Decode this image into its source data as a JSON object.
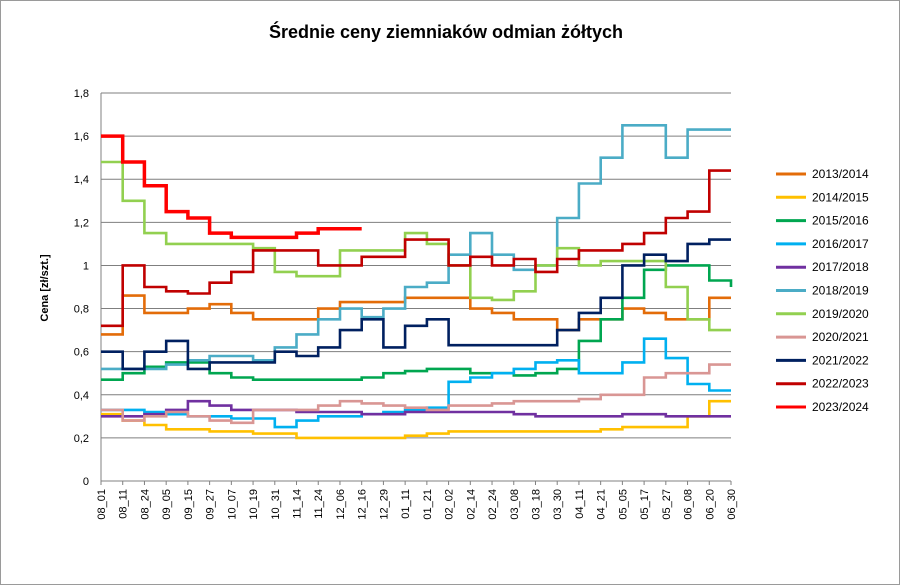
{
  "chart_data": {
    "type": "line",
    "title": "Średnie ceny ziemniaków odmian żółtych",
    "xlabel": "",
    "ylabel": "Cena [zł/szt.]",
    "ylim": [
      0,
      1.8
    ],
    "yticks": [
      0,
      0.2,
      0.4,
      0.6,
      0.8,
      1,
      1.2,
      1.4,
      1.6,
      1.8
    ],
    "ytick_labels": [
      "0",
      "0,2",
      "0,4",
      "0,6",
      "0,8",
      "1",
      "1,2",
      "1,4",
      "1,6",
      "1,8"
    ],
    "grid": "horizontal",
    "legend_position": "right",
    "categories": [
      "08_01",
      "08_11",
      "08_24",
      "09_05",
      "09_15",
      "09_27",
      "10_07",
      "10_19",
      "10_31",
      "11_14",
      "11_24",
      "12_06",
      "12_16",
      "12_29",
      "01_11",
      "01_21",
      "02_02",
      "02_14",
      "02_24",
      "03_08",
      "03_18",
      "03_30",
      "04_11",
      "04_21",
      "05_05",
      "05_17",
      "05_27",
      "06_08",
      "06_20",
      "06_30"
    ],
    "series": [
      {
        "name": "2013/2014",
        "color": "#e36c09",
        "values": [
          0.68,
          0.86,
          0.78,
          0.78,
          0.8,
          0.82,
          0.78,
          0.75,
          0.75,
          0.75,
          0.8,
          0.83,
          0.83,
          0.83,
          0.85,
          0.85,
          0.85,
          0.8,
          0.78,
          0.75,
          0.75,
          0.7,
          0.75,
          0.75,
          0.8,
          0.78,
          0.75,
          0.75,
          0.85,
          0.85
        ]
      },
      {
        "name": "2014/2015",
        "color": "#ffc000",
        "values": [
          0.31,
          0.28,
          0.26,
          0.24,
          0.24,
          0.23,
          0.23,
          0.22,
          0.22,
          0.2,
          0.2,
          0.2,
          0.2,
          0.2,
          0.21,
          0.22,
          0.23,
          0.23,
          0.23,
          0.23,
          0.23,
          0.23,
          0.23,
          0.24,
          0.25,
          0.25,
          0.25,
          0.3,
          0.37,
          0.37
        ]
      },
      {
        "name": "2015/2016",
        "color": "#00a650",
        "values": [
          0.47,
          0.5,
          0.53,
          0.55,
          0.55,
          0.5,
          0.48,
          0.47,
          0.47,
          0.47,
          0.47,
          0.47,
          0.48,
          0.5,
          0.51,
          0.52,
          0.52,
          0.5,
          0.5,
          0.49,
          0.5,
          0.52,
          0.65,
          0.75,
          0.85,
          0.98,
          1.0,
          1.0,
          0.93,
          0.9
        ]
      },
      {
        "name": "2016/2017",
        "color": "#00b0f0",
        "values": [
          0.33,
          0.33,
          0.32,
          0.31,
          0.3,
          0.3,
          0.29,
          0.29,
          0.25,
          0.28,
          0.3,
          0.3,
          0.31,
          0.32,
          0.33,
          0.34,
          0.46,
          0.48,
          0.5,
          0.52,
          0.55,
          0.56,
          0.5,
          0.5,
          0.55,
          0.66,
          0.57,
          0.45,
          0.42,
          0.42
        ]
      },
      {
        "name": "2017/2018",
        "color": "#7030a0",
        "values": [
          0.3,
          0.3,
          0.31,
          0.33,
          0.37,
          0.35,
          0.33,
          0.33,
          0.33,
          0.32,
          0.32,
          0.32,
          0.31,
          0.31,
          0.32,
          0.32,
          0.32,
          0.32,
          0.32,
          0.31,
          0.3,
          0.3,
          0.3,
          0.3,
          0.31,
          0.31,
          0.3,
          0.3,
          0.3,
          0.3
        ]
      },
      {
        "name": "2018/2019",
        "color": "#4bacc6",
        "values": [
          0.52,
          0.52,
          0.52,
          0.54,
          0.56,
          0.58,
          0.58,
          0.56,
          0.62,
          0.68,
          0.75,
          0.8,
          0.76,
          0.8,
          0.9,
          0.92,
          1.05,
          1.15,
          1.05,
          0.98,
          1.0,
          1.22,
          1.38,
          1.5,
          1.65,
          1.65,
          1.5,
          1.63,
          1.63,
          1.63
        ]
      },
      {
        "name": "2019/2020",
        "color": "#92d050",
        "values": [
          1.48,
          1.3,
          1.15,
          1.1,
          1.1,
          1.1,
          1.1,
          1.08,
          0.97,
          0.95,
          0.95,
          1.07,
          1.07,
          1.07,
          1.15,
          1.1,
          1.0,
          0.85,
          0.84,
          0.88,
          1.0,
          1.08,
          1.0,
          1.02,
          1.02,
          1.02,
          0.9,
          0.75,
          0.7,
          0.7
        ]
      },
      {
        "name": "2020/2021",
        "color": "#d99694",
        "values": [
          0.33,
          0.28,
          0.3,
          0.32,
          0.3,
          0.28,
          0.27,
          0.33,
          0.33,
          0.33,
          0.35,
          0.37,
          0.36,
          0.35,
          0.34,
          0.33,
          0.35,
          0.35,
          0.36,
          0.37,
          0.37,
          0.37,
          0.38,
          0.4,
          0.4,
          0.48,
          0.5,
          0.5,
          0.54,
          0.54
        ]
      },
      {
        "name": "2021/2022",
        "color": "#002060",
        "values": [
          0.6,
          0.52,
          0.6,
          0.65,
          0.52,
          0.55,
          0.55,
          0.55,
          0.6,
          0.58,
          0.62,
          0.7,
          0.75,
          0.62,
          0.72,
          0.75,
          0.63,
          0.63,
          0.63,
          0.63,
          0.63,
          0.7,
          0.78,
          0.85,
          1.0,
          1.05,
          1.02,
          1.1,
          1.12,
          1.12
        ]
      },
      {
        "name": "2022/2023",
        "color": "#c00000",
        "values": [
          0.72,
          1.0,
          0.9,
          0.88,
          0.87,
          0.92,
          0.97,
          1.07,
          1.07,
          1.07,
          1.0,
          1.0,
          1.04,
          1.04,
          1.12,
          1.12,
          1.0,
          1.04,
          1.0,
          1.03,
          0.97,
          1.03,
          1.07,
          1.07,
          1.1,
          1.15,
          1.22,
          1.25,
          1.44,
          1.44
        ]
      },
      {
        "name": "2023/2024",
        "color": "#ff0000",
        "values": [
          1.6,
          1.48,
          1.37,
          1.25,
          1.22,
          1.15,
          1.13,
          1.13,
          1.13,
          1.15,
          1.17,
          1.17,
          1.17,
          null,
          null,
          null,
          null,
          null,
          null,
          null,
          null,
          null,
          null,
          null,
          null,
          null,
          null,
          null,
          null,
          null
        ]
      }
    ]
  }
}
